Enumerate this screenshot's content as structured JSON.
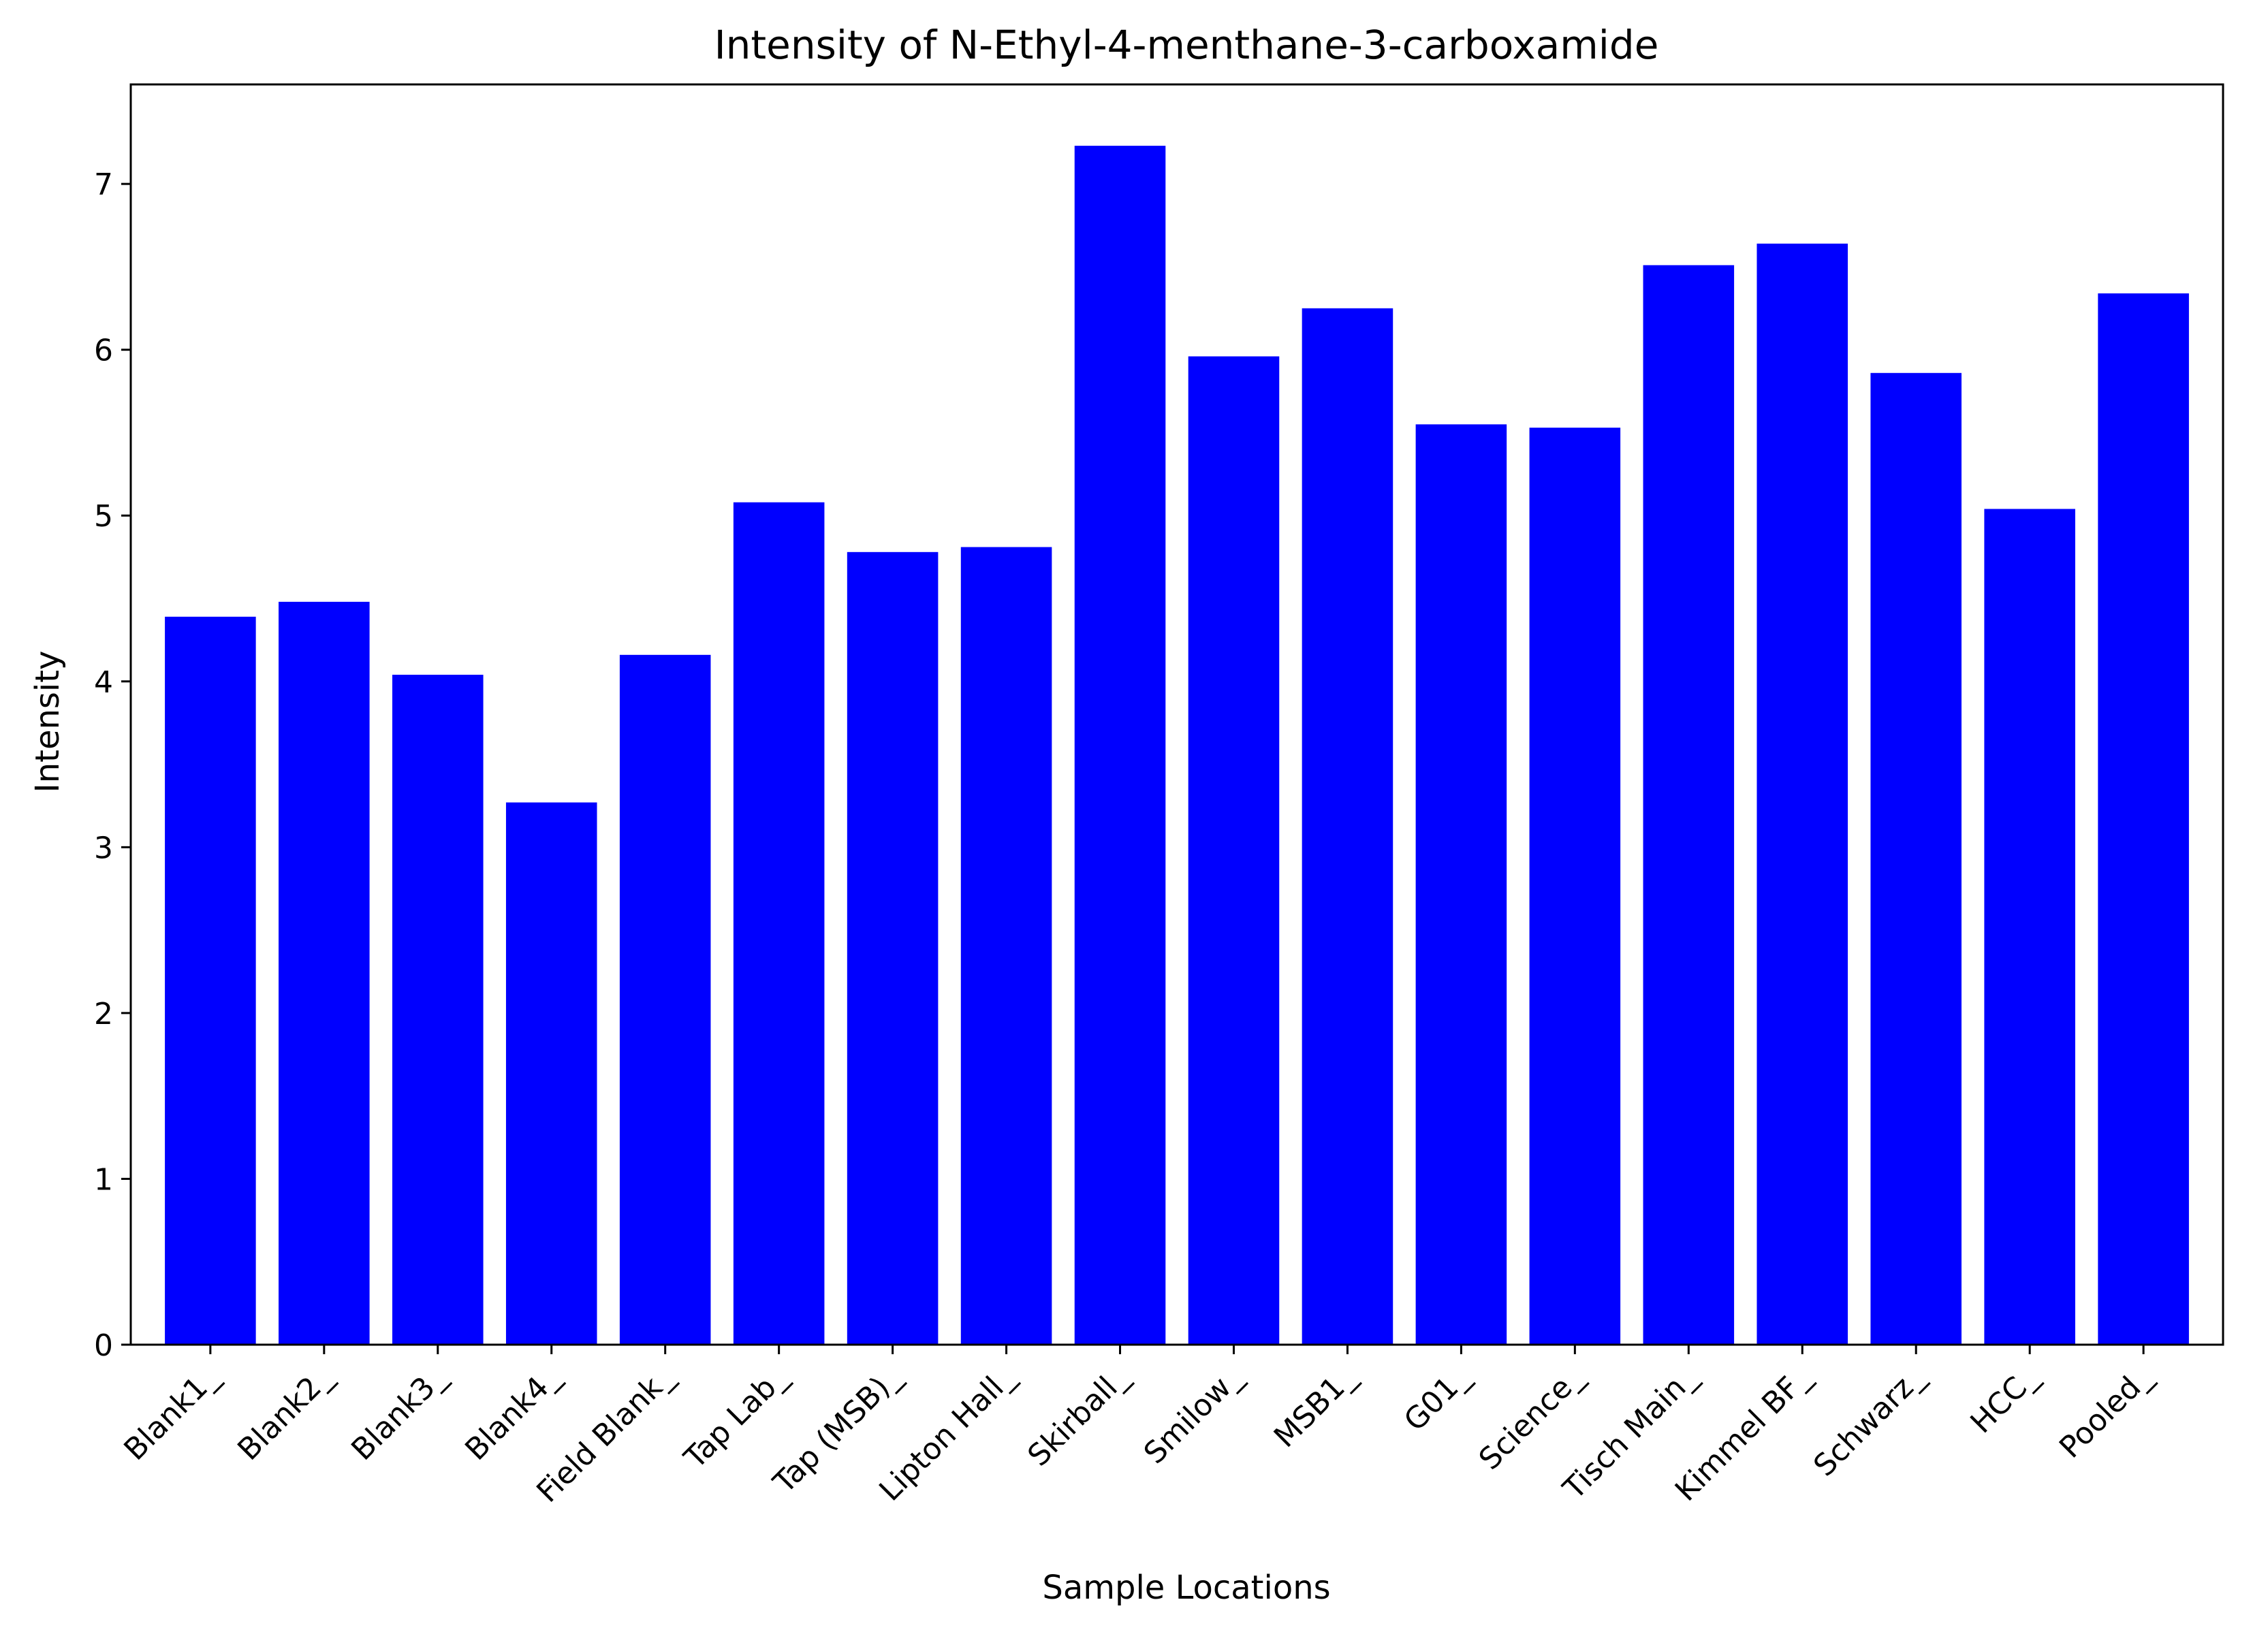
{
  "chart_data": {
    "type": "bar",
    "title": "Intensity of N-Ethyl-4-menthane-3-carboxamide",
    "xlabel": "Sample Locations",
    "ylabel": "Intensity",
    "categories": [
      "Blank1_",
      "Blank2_",
      "Blank3_",
      "Blank4_",
      "Field Blank_",
      "Tap Lab_",
      "Tap (MSB)_",
      "Lipton Hall_",
      "Skirball_",
      "Smilow_",
      "MSB1_",
      "G01_",
      "Science_",
      "Tisch Main_",
      "Kimmel BF_",
      "Schwarz_",
      "HCC_",
      "Pooled_"
    ],
    "values": [
      4.39,
      4.48,
      4.04,
      3.27,
      4.16,
      5.08,
      4.78,
      4.81,
      7.23,
      5.96,
      6.25,
      5.55,
      5.53,
      6.51,
      6.64,
      5.86,
      5.04,
      6.34
    ],
    "ylim": [
      0,
      7.6
    ],
    "yticks": [
      "0",
      "1",
      "2",
      "3",
      "4",
      "5",
      "6",
      "7"
    ],
    "bar_color": "#0000ff",
    "grid": false,
    "legend": "none"
  }
}
